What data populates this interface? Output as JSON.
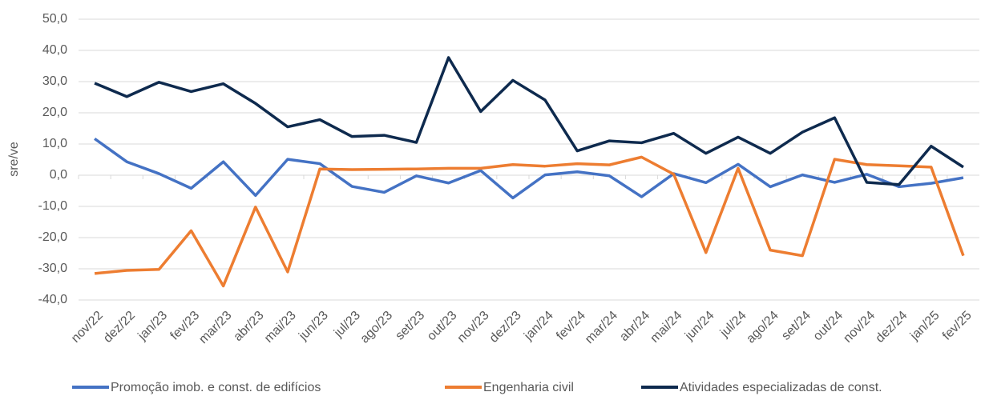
{
  "chart_data": {
    "type": "line",
    "y_label": "sre/ve",
    "categories": [
      "nov/22",
      "dez/22",
      "jan/23",
      "fev/23",
      "mar/23",
      "abr/23",
      "mai/23",
      "jun/23",
      "jul/23",
      "ago/23",
      "set/23",
      "out/23",
      "nov/23",
      "dez/23",
      "jan/24",
      "fev/24",
      "mar/24",
      "abr/24",
      "mai/24",
      "jun/24",
      "jul/24",
      "ago/24",
      "set/24",
      "out/24",
      "nov/24",
      "dez/24",
      "jan/25",
      "fev/25"
    ],
    "series": [
      {
        "name": "Promoção imob. e const. de edifícios",
        "color": "#4472c4",
        "values": [
          11.7,
          4.3,
          0.5,
          -4.2,
          4.3,
          -6.5,
          5.1,
          3.7,
          -3.6,
          -5.5,
          -0.2,
          -2.5,
          1.5,
          -7.3,
          0.1,
          1.1,
          -0.2,
          -6.9,
          0.5,
          -2.4,
          3.5,
          -3.7,
          0.1,
          -2.3,
          0.3,
          -3.7,
          -2.6,
          -0.8
        ]
      },
      {
        "name": "Engenharia civil",
        "color": "#ed7d31",
        "values": [
          -31.5,
          -30.5,
          -30.2,
          -17.8,
          -35.5,
          -10.2,
          -31.0,
          2.0,
          1.8,
          1.9,
          2.0,
          2.2,
          2.2,
          3.4,
          2.9,
          3.7,
          3.3,
          5.8,
          0.3,
          -24.8,
          2.2,
          -24.0,
          -25.8,
          5.1,
          3.4,
          3.0,
          2.6,
          -25.8
        ]
      },
      {
        "name": "Atividades especializadas de const.",
        "color": "#0e2a4e",
        "values": [
          29.5,
          25.2,
          29.8,
          26.8,
          29.3,
          23.0,
          15.5,
          17.8,
          12.4,
          12.8,
          10.5,
          37.7,
          20.4,
          30.4,
          24.1,
          7.8,
          11.0,
          10.4,
          13.4,
          7.0,
          12.2,
          7.0,
          13.8,
          18.4,
          -2.3,
          -3.0,
          9.3,
          2.6
        ]
      }
    ],
    "ylim": [
      -40,
      50
    ],
    "yticks": [
      {
        "value": -40,
        "label": "-40,0"
      },
      {
        "value": -30,
        "label": "-30,0"
      },
      {
        "value": -20,
        "label": "-20,0"
      },
      {
        "value": -10,
        "label": "-10,0"
      },
      {
        "value": 0,
        "label": "0,0"
      },
      {
        "value": 10,
        "label": "10,0"
      },
      {
        "value": 20,
        "label": "20,0"
      },
      {
        "value": 30,
        "label": "30,0"
      },
      {
        "value": 40,
        "label": "40,0"
      },
      {
        "value": 50,
        "label": "50,0"
      }
    ],
    "grid": true
  }
}
